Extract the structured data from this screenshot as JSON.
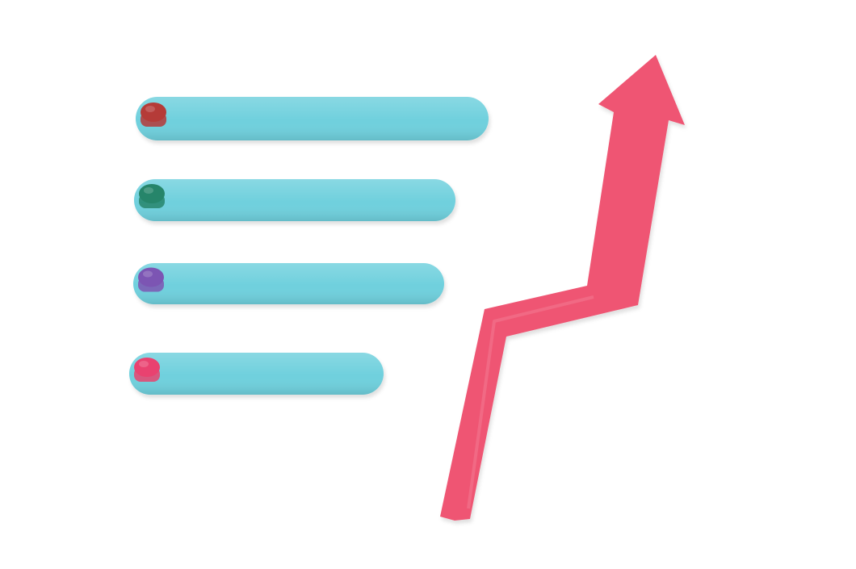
{
  "scene": {
    "background_color": "#ffffff",
    "stick_color": "#6fd0dd",
    "arrow_color": "#ef5573",
    "icon": "growth-arrow-icon"
  },
  "sticks": [
    {
      "name": "bar-1",
      "length_fraction": 1.0,
      "peg_color": "#b53a38"
    },
    {
      "name": "bar-2",
      "length_fraction": 0.91,
      "peg_color": "#25856a"
    },
    {
      "name": "bar-3",
      "length_fraction": 0.88,
      "peg_color": "#7c55b3"
    },
    {
      "name": "bar-4",
      "length_fraction": 0.72,
      "peg_color": "#e9436f"
    }
  ]
}
